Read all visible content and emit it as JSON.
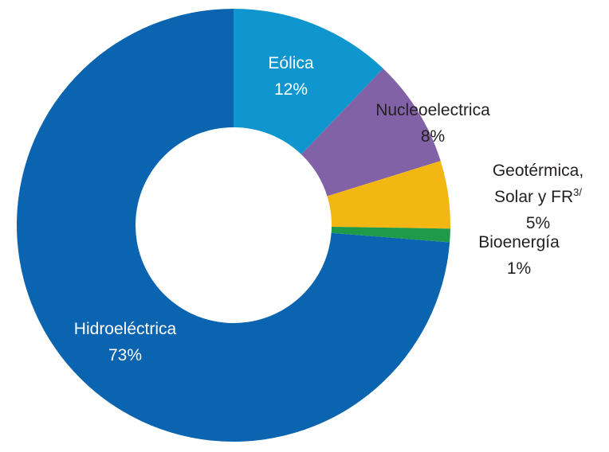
{
  "chart_data": {
    "type": "donut",
    "categories": [
      "Eólica",
      "Nucleoelectrica",
      "Geotérmica, Solar y FR",
      "Bioenergía",
      "Hidroeléctrica"
    ],
    "footnotes": [
      null,
      null,
      "3/",
      null,
      null
    ],
    "values": [
      12,
      8,
      5,
      1,
      73
    ],
    "value_labels": [
      "12%",
      "8%",
      "5%",
      "1%",
      "73%"
    ],
    "colors": [
      "#0f96cf",
      "#8262a6",
      "#f2b713",
      "#1f9a48",
      "#0a64b0"
    ]
  }
}
